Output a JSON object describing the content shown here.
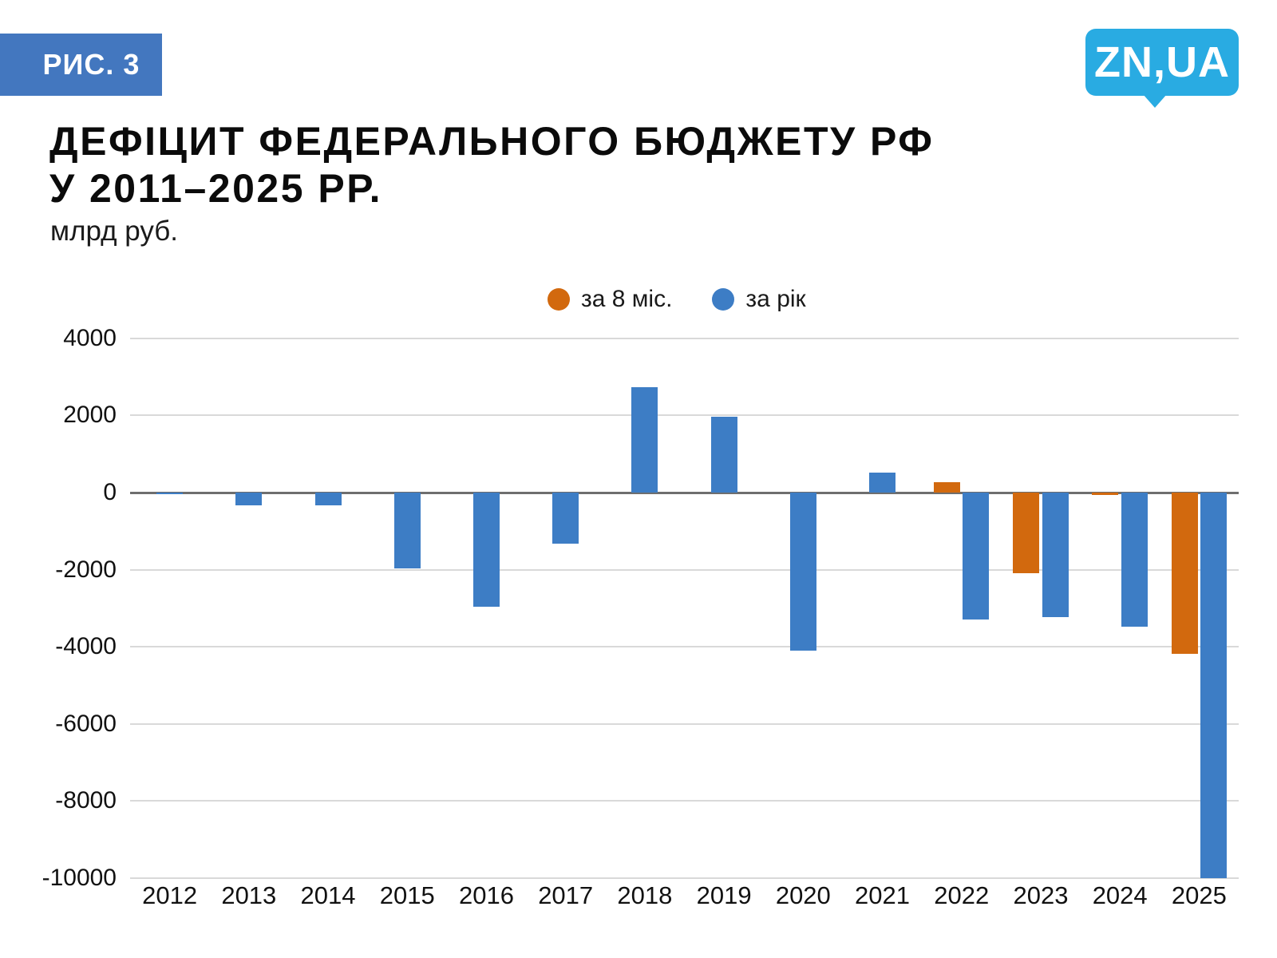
{
  "figure_label": "РИС. 3",
  "figure_badge_color": "#4377bf",
  "logo": {
    "text": "ZN,UA",
    "color": "#29abe2"
  },
  "title": {
    "line1": "ДЕФІЦИТ ФЕДЕРАЛЬНОГО БЮДЖЕТУ РФ",
    "line2": "У 2011–2025 РР.",
    "subtitle": "млрд руб."
  },
  "legend": {
    "items": [
      {
        "label": "за 8 міс.",
        "color": "#d2690e"
      },
      {
        "label": "за рік",
        "color": "#3d7dc5"
      }
    ]
  },
  "chart_data": {
    "type": "bar",
    "title": "ДЕФІЦИТ ФЕДЕРАЛЬНОГО БЮДЖЕТУ РФ У 2011–2025 РР.",
    "ylabel": "млрд руб.",
    "categories": [
      "2012",
      "2013",
      "2014",
      "2015",
      "2016",
      "2017",
      "2018",
      "2019",
      "2020",
      "2021",
      "2022",
      "2023",
      "2024",
      "2025"
    ],
    "series": [
      {
        "name": "за 8 міс.",
        "color": "#d2690e",
        "values": [
          null,
          null,
          null,
          null,
          null,
          null,
          null,
          null,
          null,
          null,
          270,
          -2100,
          -60,
          -4190
        ]
      },
      {
        "name": "за рік",
        "color": "#3d7dc5",
        "values": [
          -39,
          -323,
          -334,
          -1961,
          -2956,
          -1331,
          2741,
          1967,
          -4102,
          515,
          -3295,
          -3230,
          -3485,
          -10000
        ]
      }
    ],
    "ylim": [
      -10000,
      4000
    ],
    "ytick_step": 2000,
    "grid": true,
    "zero_line": true,
    "legend_position": "top"
  }
}
